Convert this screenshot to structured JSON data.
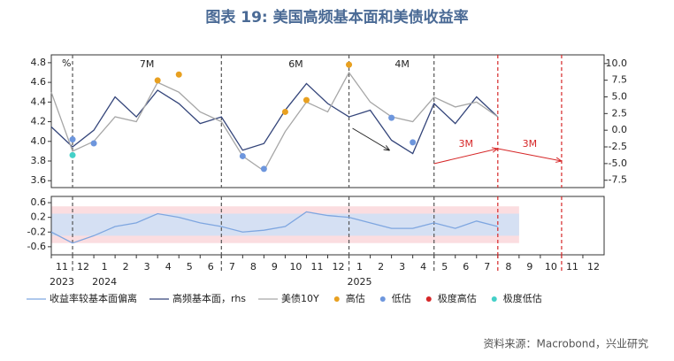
{
  "chart_data": [
    {
      "type": "line",
      "title": "图表 19: 美国高频基本面和美债收益率",
      "source": "资料来源：Macrobond，兴业研究",
      "unit_label": "%",
      "x": [
        "2023-11",
        "2023-12",
        "2024-01",
        "2024-02",
        "2024-03",
        "2024-04",
        "2024-05",
        "2024-06",
        "2024-07",
        "2024-08",
        "2024-09",
        "2024-10",
        "2024-11",
        "2024-12",
        "2025-01",
        "2025-02",
        "2025-03",
        "2025-04",
        "2025-05",
        "2025-06",
        "2025-07",
        "2025-08"
      ],
      "ylim": [
        3.53,
        4.88
      ],
      "yticks": [
        3.6,
        3.8,
        {
          "value": 4.0,
          "label": "4.0"
        },
        4.2,
        4.4,
        4.6,
        4.8
      ],
      "y2lim": [
        -8.6,
        11.3
      ],
      "y2ticks": [
        {
          "value": -7.5,
          "label": "-7.5"
        },
        {
          "value": -5,
          "label": "-5.0"
        },
        {
          "value": -2.5,
          "label": "-2.5"
        },
        {
          "value": 0,
          "label": "0.0"
        },
        {
          "value": 2.5,
          "label": "2.5"
        },
        {
          "value": 5,
          "label": "5.0"
        },
        {
          "value": 7.5,
          "label": "7.5"
        },
        {
          "value": 10,
          "label": "10.0"
        }
      ],
      "series": [
        {
          "name": "高频基本面，rhs",
          "color": "#34457a",
          "axis": "y2",
          "values": [
            0.5,
            -2.5,
            0,
            5,
            2,
            6,
            4,
            1,
            2,
            -3,
            -2,
            3,
            7,
            4,
            2,
            3,
            -1.5,
            -3.5,
            4,
            1,
            5,
            2
          ]
        },
        {
          "name": "美债10Y",
          "color": "#a6a6a6",
          "values": [
            4.5,
            3.9,
            4.0,
            4.25,
            4.2,
            4.6,
            4.5,
            4.3,
            4.2,
            3.85,
            3.7,
            4.1,
            4.4,
            4.3,
            4.7,
            4.4,
            4.25,
            4.2,
            4.45,
            4.35,
            4.4,
            4.25
          ]
        }
      ],
      "scatter": [
        {
          "name": "高估",
          "color": "#e8a020",
          "x": [
            "2024-04",
            "2024-05",
            "2024-10",
            "2024-11",
            "2025-01"
          ],
          "values": [
            4.62,
            4.68,
            4.3,
            4.42,
            4.78
          ]
        },
        {
          "name": "低估",
          "color": "#6d96dd",
          "x": [
            "2023-12",
            "2024-01",
            "2024-08",
            "2024-09",
            "2025-03",
            "2025-04"
          ],
          "values": [
            4.02,
            3.98,
            3.85,
            3.72,
            4.24,
            3.99
          ]
        },
        {
          "name": "极度高估",
          "color": "#d62728",
          "x": [],
          "values": []
        },
        {
          "name": "极度低估",
          "color": "#44d0c8",
          "x": [
            "2023-12"
          ],
          "values": [
            3.86
          ]
        }
      ],
      "vlines": [
        {
          "x": "2023-12",
          "color": "#555555"
        },
        {
          "x": "2024-07",
          "color": "#555555"
        },
        {
          "x": "2025-01",
          "color": "#555555"
        },
        {
          "x": "2025-05",
          "color": "#555555"
        },
        {
          "x": "2025-08",
          "color": "#d62728"
        },
        {
          "x": "2025-11",
          "color": "#d62728"
        }
      ],
      "annotations": [
        {
          "text": "7M",
          "x": "2024-03"
        },
        {
          "text": "6M",
          "x": "2024-10"
        },
        {
          "text": "4M",
          "x": "2025-03"
        },
        {
          "text": "3M",
          "x": "2025-06"
        },
        {
          "text": "3M",
          "x": "2025-09"
        }
      ]
    },
    {
      "type": "line",
      "ylim": [
        -0.82,
        0.77
      ],
      "yticks": [
        -0.6,
        -0.2,
        0.2,
        0.6
      ],
      "xlim": [
        "2023-11",
        "2026-01"
      ],
      "xticks": [
        {
          "value": "2023-11",
          "label": "11"
        },
        {
          "value": "2023-12",
          "label": "12"
        },
        {
          "value": "2024-01",
          "label": "1"
        },
        {
          "value": "2024-02",
          "label": "2"
        },
        {
          "value": "2024-03",
          "label": "3"
        },
        {
          "value": "2024-04",
          "label": "4"
        },
        {
          "value": "2024-05",
          "label": "5"
        },
        {
          "value": "2024-06",
          "label": "6"
        },
        {
          "value": "2024-07",
          "label": "7"
        },
        {
          "value": "2024-08",
          "label": "8"
        },
        {
          "value": "2024-09",
          "label": "9"
        },
        {
          "value": "2024-10",
          "label": "10"
        },
        {
          "value": "2024-11",
          "label": "11"
        },
        {
          "value": "2024-12",
          "label": "12"
        },
        {
          "value": "2025-01",
          "label": "1"
        },
        {
          "value": "2025-02",
          "label": "2"
        },
        {
          "value": "2025-03",
          "label": "3"
        },
        {
          "value": "2025-04",
          "label": "4"
        },
        {
          "value": "2025-05",
          "label": "5"
        },
        {
          "value": "2025-06",
          "label": "6"
        },
        {
          "value": "2025-07",
          "label": "7"
        },
        {
          "value": "2025-08",
          "label": "8"
        },
        {
          "value": "2025-09",
          "label": "9"
        },
        {
          "value": "2025-10",
          "label": "10"
        },
        {
          "value": "2025-11",
          "label": "11"
        },
        {
          "value": "2025-12",
          "label": "12"
        }
      ],
      "year_labels": [
        {
          "value": "2023-11",
          "label": "2023"
        },
        {
          "value": "2024-01",
          "label": "2024"
        },
        {
          "value": "2025-01",
          "label": "2025"
        }
      ],
      "bands": [
        {
          "lower": -0.5,
          "upper": 0.5,
          "color": "#fbdde0"
        },
        {
          "lower": -0.3,
          "upper": 0.3,
          "color": "#d5e0f3"
        }
      ],
      "x": [
        "2023-11",
        "2023-12",
        "2024-01",
        "2024-02",
        "2024-03",
        "2024-04",
        "2024-05",
        "2024-06",
        "2024-07",
        "2024-08",
        "2024-09",
        "2024-10",
        "2024-11",
        "2024-12",
        "2025-01",
        "2025-02",
        "2025-03",
        "2025-04",
        "2025-05",
        "2025-06",
        "2025-07",
        "2025-08"
      ],
      "series": [
        {
          "name": "收益率较基本面偏离",
          "color": "#7ea6e0",
          "values": [
            -0.2,
            -0.5,
            -0.3,
            -0.05,
            0.05,
            0.3,
            0.2,
            0.05,
            -0.05,
            -0.2,
            -0.15,
            -0.05,
            0.35,
            0.25,
            0.2,
            0.05,
            -0.1,
            -0.1,
            0.05,
            -0.1,
            0.1,
            -0.05
          ]
        }
      ]
    }
  ]
}
